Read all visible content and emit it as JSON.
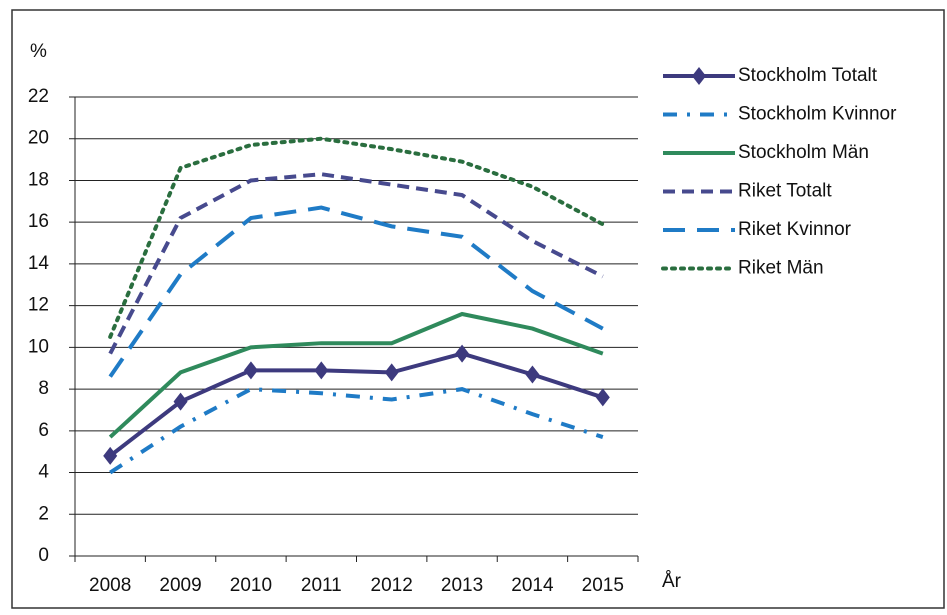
{
  "chart_data": {
    "type": "line",
    "y_label": "%",
    "x_label": "År",
    "categories": [
      "2008",
      "2009",
      "2010",
      "2011",
      "2012",
      "2013",
      "2014",
      "2015"
    ],
    "ylim": [
      0,
      22
    ],
    "yticks": [
      0,
      2,
      4,
      6,
      8,
      10,
      12,
      14,
      16,
      18,
      20,
      22
    ],
    "grid": true,
    "legend": "right",
    "series": [
      {
        "name": "Stockholm Totalt",
        "color": "#3d3a7e",
        "dash": "solid",
        "marker": "diamond",
        "values": [
          4.8,
          7.4,
          8.9,
          8.9,
          8.8,
          9.7,
          8.7,
          7.6
        ]
      },
      {
        "name": "Stockholm Kvinnor",
        "color": "#1f7bc6",
        "dash": "dash-dot",
        "values": [
          4.0,
          6.2,
          8.0,
          7.8,
          7.5,
          8.0,
          6.8,
          5.7
        ]
      },
      {
        "name": "Stockholm Män",
        "color": "#2f8a5c",
        "dash": "solid",
        "values": [
          5.7,
          8.8,
          10.0,
          10.2,
          10.2,
          11.6,
          10.9,
          9.7
        ]
      },
      {
        "name": "Riket Totalt",
        "color": "#474a8e",
        "dash": "dashed",
        "values": [
          9.7,
          16.2,
          18.0,
          18.3,
          17.8,
          17.3,
          15.1,
          13.4
        ]
      },
      {
        "name": "Riket Kvinnor",
        "color": "#1f7bc6",
        "dash": "long-dash",
        "values": [
          8.6,
          13.5,
          16.2,
          16.7,
          15.8,
          15.3,
          12.7,
          10.9
        ]
      },
      {
        "name": "Riket Män",
        "color": "#2a6e3f",
        "dash": "dotted",
        "values": [
          10.5,
          18.6,
          19.7,
          20.0,
          19.5,
          18.9,
          17.7,
          15.9
        ]
      }
    ]
  }
}
